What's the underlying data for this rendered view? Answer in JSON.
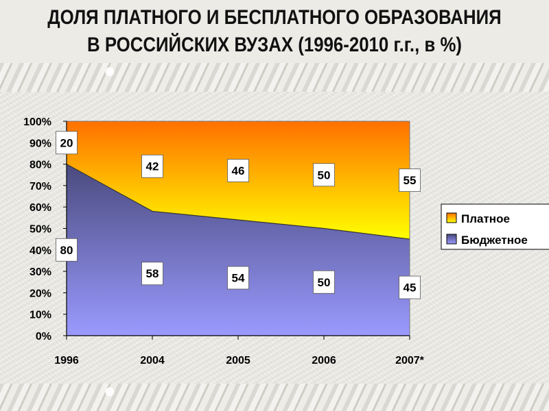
{
  "title_lines": [
    "ДОЛЯ ПЛАТНОГО И БЕСПЛАТНОГО ОБРАЗОВАНИЯ",
    "В РОССИЙСКИХ ВУЗАХ (1996-2010 г.г., в %)"
  ],
  "chart_data": {
    "type": "area",
    "stacked": "percent",
    "title": "ДОЛЯ ПЛАТНОГО И БЕСПЛАТНОГО ОБРАЗОВАНИЯ В РОССИЙСКИХ ВУЗАХ (1996-2010 г.г., в %)",
    "categories": [
      "1996",
      "2004",
      "2005",
      "2006",
      "2007*"
    ],
    "series": [
      {
        "name": "Бюджетное",
        "values": [
          80,
          58,
          54,
          50,
          45
        ],
        "color_top": "#4a4a7e",
        "color_bottom": "#9a9aff"
      },
      {
        "name": "Платное",
        "values": [
          20,
          42,
          46,
          50,
          55
        ],
        "color_top": "#ff7000",
        "color_bottom": "#ffff00"
      }
    ],
    "ylim": [
      0,
      100
    ],
    "y_ticks": [
      "0%",
      "10%",
      "20%",
      "30%",
      "40%",
      "50%",
      "60%",
      "70%",
      "80%",
      "90%",
      "100%"
    ],
    "legend_position": "right",
    "grid": false
  }
}
